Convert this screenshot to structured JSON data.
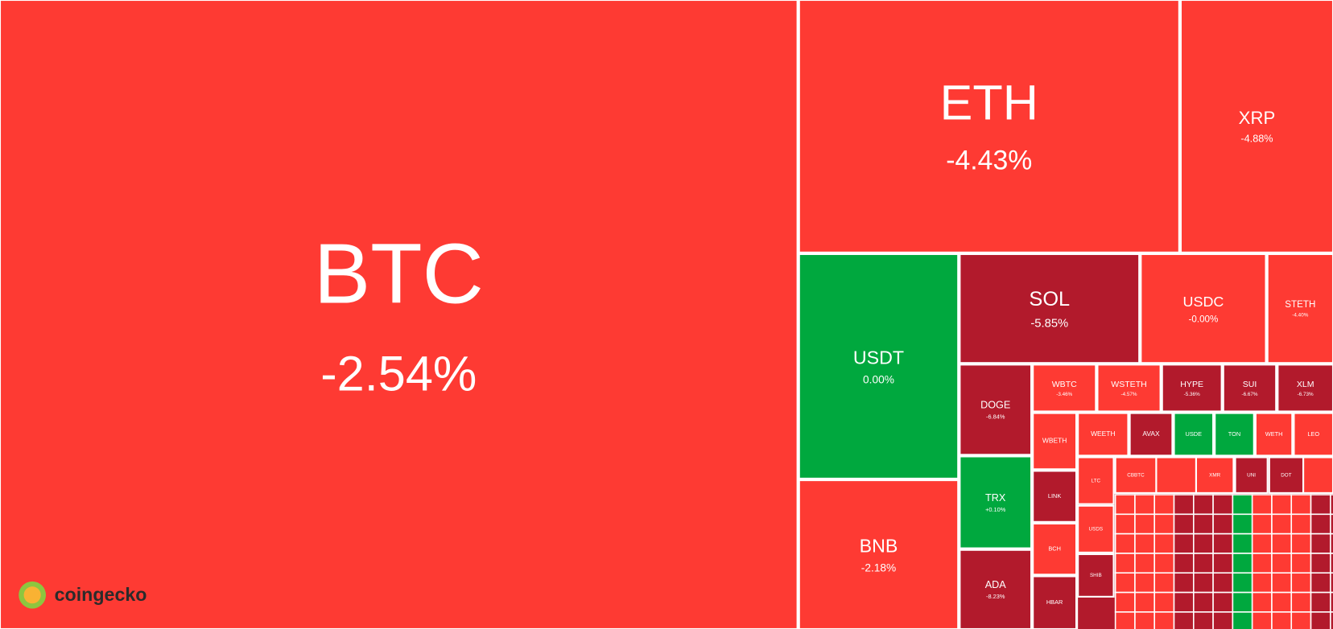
{
  "brand": "coingecko",
  "treemap": {
    "tiles": [
      {
        "label": "BTC",
        "change": "-2.54%",
        "color": "#fe3a33"
      },
      {
        "label": "ETH",
        "change": "-4.43%",
        "color": "#fe3a33"
      },
      {
        "label": "XRP",
        "change": "-4.88%",
        "color": "#fe3a33"
      },
      {
        "label": "USDT",
        "change": "0.00%",
        "color": "#00a83e"
      },
      {
        "label": "BNB",
        "change": "-2.18%",
        "color": "#fe3a33"
      },
      {
        "label": "SOL",
        "change": "-5.85%",
        "color": "#b21a2c"
      },
      {
        "label": "USDC",
        "change": "-0.00%",
        "color": "#fe3a33"
      },
      {
        "label": "STETH",
        "change": "-4.40%",
        "color": "#fe3a33"
      },
      {
        "label": "DOGE",
        "change": "-6.84%",
        "color": "#b21a2c"
      },
      {
        "label": "TRX",
        "change": "+0.10%",
        "color": "#00a83e"
      },
      {
        "label": "ADA",
        "change": "-8.23%",
        "color": "#b21a2c"
      },
      {
        "label": "WBTC",
        "change": "-3.46%",
        "color": "#fe3a33"
      },
      {
        "label": "WSTETH",
        "change": "-4.57%",
        "color": "#fe3a33"
      },
      {
        "label": "HYPE",
        "change": "-5.36%",
        "color": "#b21a2c"
      },
      {
        "label": "SUI",
        "change": "-6.67%",
        "color": "#b21a2c"
      },
      {
        "label": "XLM",
        "change": "-6.73%",
        "color": "#b21a2c"
      },
      {
        "label": "WBETH",
        "color": "#fe3a33"
      },
      {
        "label": "WEETH",
        "color": "#fe3a33"
      },
      {
        "label": "AVAX",
        "color": "#b21a2c"
      },
      {
        "label": "USDE",
        "color": "#00a83e"
      },
      {
        "label": "TON",
        "color": "#00a83e"
      },
      {
        "label": "WETH",
        "color": "#fe3a33"
      },
      {
        "label": "LEO",
        "color": "#fe3a33"
      },
      {
        "label": "LINK",
        "color": "#b21a2c"
      },
      {
        "label": "BCH",
        "color": "#fe3a33"
      },
      {
        "label": "HBAR",
        "color": "#b21a2c"
      },
      {
        "label": "LTC",
        "color": "#fe3a33"
      },
      {
        "label": "USDS",
        "color": "#fe3a33"
      },
      {
        "label": "SHIB",
        "color": "#b21a2c"
      },
      {
        "label": "CBBTC",
        "color": "#fe3a33"
      },
      {
        "label": "XMR",
        "color": "#fe3a33"
      },
      {
        "label": "UNI",
        "color": "#b21a2c"
      },
      {
        "label": "DOT",
        "color": "#b21a2c"
      }
    ]
  }
}
